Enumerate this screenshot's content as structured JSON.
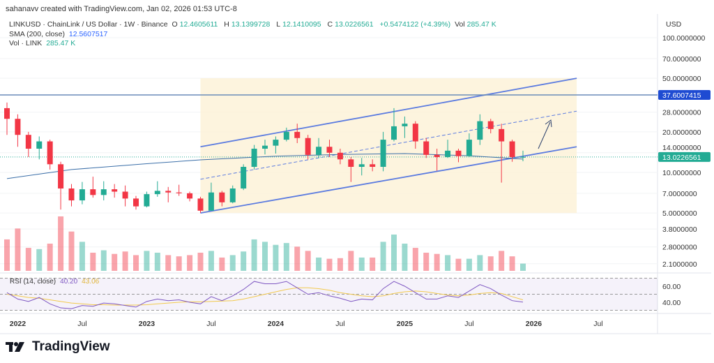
{
  "header": {
    "credit": "sahanavv created with TradingView.com, Jan 02, 2026 01:53 UTC-8"
  },
  "legend": {
    "symbol": "LINKUSD · ChainLink / US Dollar · 1W · Binance",
    "o_label": "O",
    "o": "12.4605611",
    "h_label": "H",
    "h": "13.1399728",
    "l_label": "L",
    "l": "12.1410095",
    "c_label": "C",
    "c": "13.0226561",
    "change": "+0.5474122 (+4.39%)",
    "vol_label": "Vol",
    "vol": "285.47 K",
    "sma_label": "SMA (200, close)",
    "sma": "12.5607517",
    "volume_label": "Vol · LINK",
    "volume": "285.47 K"
  },
  "rsi_legend": {
    "label": "RSI (14, close)",
    "rsi": "40.20",
    "ma": "43.06"
  },
  "logo": "TradingView",
  "colors": {
    "up": "#22ab94",
    "down": "#f23645",
    "channel": "#5b7be0",
    "fill": "#fdf1d6",
    "hline": "#6a8bb8",
    "sma": "#3a6ea8",
    "rsi": "#7e57c2",
    "rsi_ma": "#f2c94c",
    "hline_badge": "#1e4bd2",
    "price_badge": "#22ab94"
  },
  "chart_data": {
    "type": "candlestick",
    "scale": "log",
    "currency": "USD",
    "y_ticks": [
      "100.0000000",
      "70.0000000",
      "50.0000000",
      "28.0000000",
      "20.0000000",
      "14.0000000",
      "10.0000000",
      "7.0000000",
      "5.0000000",
      "3.8000000",
      "2.8000000",
      "2.1000000"
    ],
    "y_tick_values": [
      100,
      70,
      50,
      28,
      20,
      14,
      10,
      7,
      5,
      3.8,
      2.8,
      2.1
    ],
    "x_ticks": [
      {
        "label": "2022",
        "date": "2022-01",
        "bold": true
      },
      {
        "label": "Jul",
        "date": "2022-07"
      },
      {
        "label": "2023",
        "date": "2023-01",
        "bold": true
      },
      {
        "label": "Jul",
        "date": "2023-07"
      },
      {
        "label": "2024",
        "date": "2024-01",
        "bold": true
      },
      {
        "label": "Jul",
        "date": "2024-07"
      },
      {
        "label": "2025",
        "date": "2025-01",
        "bold": true
      },
      {
        "label": "Jul",
        "date": "2025-07"
      },
      {
        "label": "2026",
        "date": "2026-01",
        "bold": true
      },
      {
        "label": "Jul",
        "date": "2026-07"
      }
    ],
    "horizontal_line": {
      "value": 37.6007415,
      "label": "37.6007415"
    },
    "last_price": {
      "value": 13.0226561,
      "label": "13.0226561"
    },
    "channel": {
      "start": "2023-06",
      "end": "2026-05",
      "upper": [
        15.5,
        50
      ],
      "middle": [
        8.9,
        28.5
      ],
      "lower": [
        5.0,
        15.5
      ]
    },
    "candles": [
      [
        "2021-12",
        30,
        33,
        19,
        25
      ],
      [
        "2022-01",
        25,
        27,
        15.5,
        19
      ],
      [
        "2022-02",
        19,
        20,
        13,
        15
      ],
      [
        "2022-03",
        15,
        18.5,
        12.5,
        17
      ],
      [
        "2022-04",
        17,
        17.5,
        10.5,
        11.5
      ],
      [
        "2022-05",
        11.5,
        12,
        5.3,
        7.6
      ],
      [
        "2022-06",
        7.6,
        8.2,
        5.6,
        6.2
      ],
      [
        "2022-07",
        6.2,
        8.5,
        5.8,
        7.5
      ],
      [
        "2022-08",
        7.5,
        9.3,
        6.5,
        6.8
      ],
      [
        "2022-09",
        6.8,
        8.6,
        6.2,
        7.5
      ],
      [
        "2022-10",
        7.5,
        8.2,
        6.5,
        7.2
      ],
      [
        "2022-11",
        7.2,
        8.0,
        5.6,
        6.4
      ],
      [
        "2022-12",
        6.4,
        6.7,
        5.3,
        5.6
      ],
      [
        "2023-01",
        5.6,
        7.2,
        5.5,
        6.9
      ],
      [
        "2023-02",
        6.9,
        8.6,
        6.6,
        7.3
      ],
      [
        "2023-03",
        7.3,
        7.8,
        6.0,
        7.1
      ],
      [
        "2023-04",
        7.1,
        8.1,
        6.7,
        7.0
      ],
      [
        "2023-05",
        7.0,
        7.2,
        6.1,
        6.4
      ],
      [
        "2023-06",
        6.4,
        6.6,
        5.0,
        5.2
      ],
      [
        "2023-07",
        5.2,
        8.4,
        5.2,
        7.1
      ],
      [
        "2023-08",
        7.1,
        7.3,
        5.6,
        6.0
      ],
      [
        "2023-09",
        6.0,
        8.0,
        5.9,
        7.6
      ],
      [
        "2023-10",
        7.6,
        11.5,
        7.4,
        11
      ],
      [
        "2023-11",
        11,
        16,
        10.5,
        15.0
      ],
      [
        "2023-12",
        15.0,
        17.5,
        13.6,
        15.8
      ],
      [
        "2024-01",
        15.8,
        18.5,
        13.8,
        17.5
      ],
      [
        "2024-02",
        17.5,
        21.5,
        17,
        20
      ],
      [
        "2024-03",
        20,
        23,
        16.5,
        18
      ],
      [
        "2024-04",
        18,
        19,
        12.5,
        13.5
      ],
      [
        "2024-05",
        13.5,
        18,
        12.8,
        15.5
      ],
      [
        "2024-06",
        15.5,
        17.5,
        13,
        14
      ],
      [
        "2024-07",
        14,
        15,
        11.5,
        12.5
      ],
      [
        "2024-08",
        12.5,
        13,
        8.5,
        11
      ],
      [
        "2024-09",
        11,
        12.8,
        9.5,
        11.5
      ],
      [
        "2024-10",
        11.5,
        12.5,
        10.2,
        11
      ],
      [
        "2024-11",
        11,
        20,
        10.2,
        17.5
      ],
      [
        "2024-12",
        17.5,
        30,
        17,
        22
      ],
      [
        "2025-01",
        22,
        26,
        18,
        23
      ],
      [
        "2025-02",
        23,
        24,
        15,
        17
      ],
      [
        "2025-03",
        17,
        18,
        12.8,
        13.5
      ],
      [
        "2025-04",
        13.5,
        15,
        10.3,
        13
      ],
      [
        "2025-05",
        13,
        17.5,
        12.8,
        14.5
      ],
      [
        "2025-06",
        14.5,
        15,
        11.9,
        13.2
      ],
      [
        "2025-07",
        13.2,
        19.5,
        13,
        17.5
      ],
      [
        "2025-08",
        17.5,
        27,
        16,
        24
      ],
      [
        "2025-09",
        24,
        25,
        19.5,
        21
      ],
      [
        "2025-10",
        21,
        23,
        8.4,
        17
      ],
      [
        "2025-11",
        17,
        17.5,
        12,
        13
      ],
      [
        "2025-12",
        13,
        14.5,
        12.1,
        13.02
      ]
    ],
    "sma_200": [
      [
        "2021-12",
        9
      ],
      [
        "2022-06",
        10.5
      ],
      [
        "2023-01",
        11.6
      ],
      [
        "2023-06",
        12.4
      ],
      [
        "2024-01",
        13.2
      ],
      [
        "2024-07",
        13.6
      ],
      [
        "2025-01",
        13.8
      ],
      [
        "2025-07",
        13.3
      ],
      [
        "2025-12",
        12.56
      ]
    ],
    "volume_k": [
      520,
      700,
      380,
      360,
      450,
      900,
      650,
      480,
      300,
      340,
      280,
      320,
      260,
      330,
      300,
      260,
      240,
      260,
      300,
      330,
      220,
      260,
      320,
      520,
      480,
      430,
      460,
      400,
      330,
      220,
      200,
      210,
      330,
      220,
      220,
      480,
      600,
      450,
      380,
      300,
      280,
      260,
      200,
      200,
      260,
      240,
      330,
      240,
      120
    ],
    "rsi": {
      "ylim": [
        30,
        70
      ],
      "ticks": [
        60,
        40
      ],
      "values": [
        52,
        44,
        41,
        46,
        38,
        33,
        32,
        36,
        35,
        39,
        38,
        36,
        34,
        41,
        44,
        42,
        43,
        40,
        38,
        47,
        42,
        48,
        56,
        66,
        63,
        63,
        66,
        58,
        50,
        52,
        48,
        45,
        41,
        44,
        43,
        57,
        66,
        60,
        52,
        44,
        44,
        48,
        46,
        54,
        62,
        57,
        49,
        42,
        40.2
      ],
      "ma": [
        50,
        48,
        46,
        45,
        43,
        41,
        39,
        38,
        37,
        37,
        36.5,
        36.5,
        36.5,
        37,
        38,
        39,
        40,
        40.5,
        40.5,
        41,
        41.5,
        42,
        44,
        47,
        50,
        53,
        56,
        58,
        58,
        57,
        55,
        52,
        50,
        48,
        47,
        48,
        51,
        53,
        54,
        53,
        51,
        49,
        48,
        49,
        51,
        52,
        51,
        47,
        43.06
      ]
    }
  }
}
